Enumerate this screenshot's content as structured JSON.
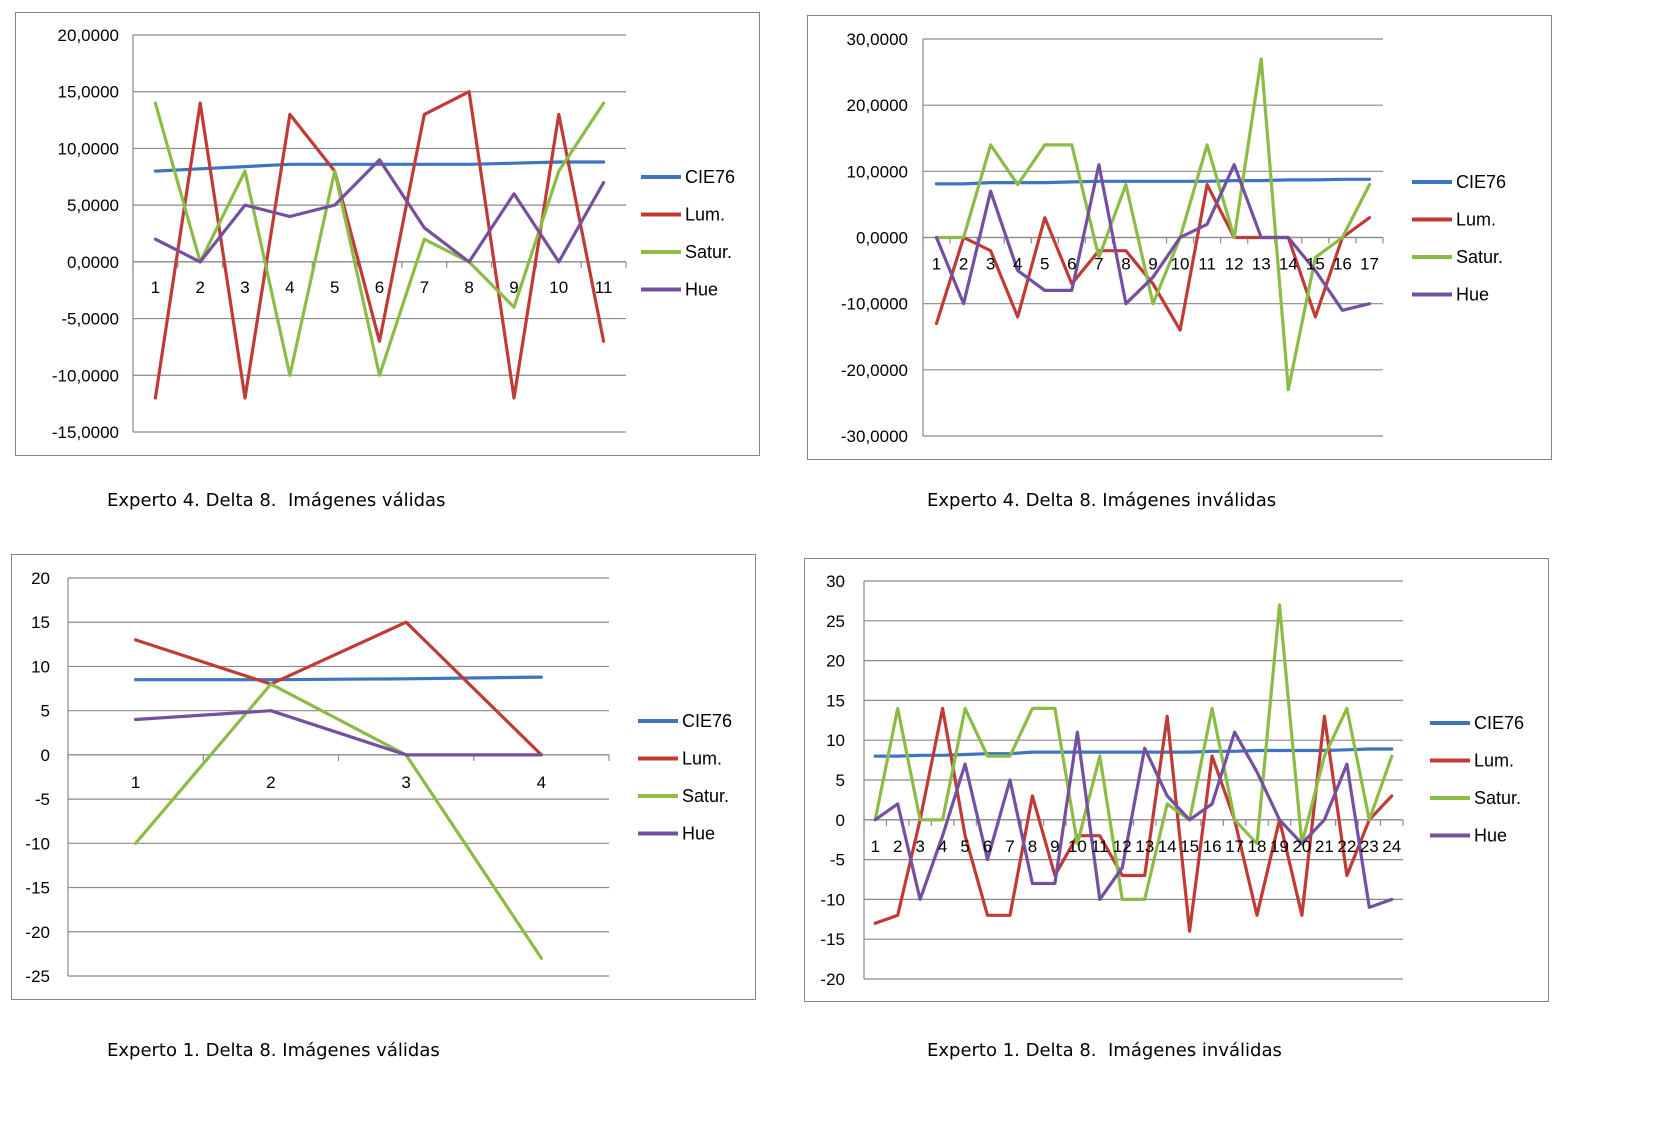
{
  "colors": {
    "CIE76": "#3e74c0",
    "Lum.": "#c03b36",
    "Satur.": "#8cbc45",
    "Hue": "#7350a0",
    "grid": "#8a8a8a"
  },
  "captions": [
    "Experto 4. Delta 8.  Imágenes válidas",
    "Experto 4. Delta 8. Imágenes inválidas",
    "Experto 1. Delta 8. Imágenes válidas",
    "Experto 1. Delta 8.  Imágenes inválidas"
  ],
  "chart_data": [
    {
      "type": "line",
      "x": [
        1,
        2,
        3,
        4,
        5,
        6,
        7,
        8,
        9,
        10,
        11
      ],
      "ylim": [
        -15,
        20
      ],
      "yticks": [
        "20,0000",
        "15,0000",
        "10,0000",
        "5,0000",
        "0,0000",
        "-5,0000",
        "-10,0000",
        "-15,0000"
      ],
      "legend": "right",
      "grid": true,
      "series": [
        {
          "name": "CIE76",
          "values": [
            8.0,
            8.2,
            8.4,
            8.6,
            8.6,
            8.6,
            8.6,
            8.6,
            8.7,
            8.8,
            8.8
          ]
        },
        {
          "name": "Lum.",
          "values": [
            -12,
            14,
            -12,
            13,
            8,
            -7,
            13,
            15,
            -12,
            13,
            -7
          ]
        },
        {
          "name": "Satur.",
          "values": [
            14,
            0,
            8,
            -10,
            8,
            -10,
            2,
            0,
            -4,
            8,
            14
          ]
        },
        {
          "name": "Hue",
          "values": [
            2,
            0,
            5,
            4,
            5,
            9,
            3,
            0,
            6,
            0,
            7
          ]
        }
      ]
    },
    {
      "type": "line",
      "x": [
        1,
        2,
        3,
        4,
        5,
        6,
        7,
        8,
        9,
        10,
        11,
        12,
        13,
        14,
        15,
        16,
        17
      ],
      "ylim": [
        -30,
        30
      ],
      "yticks": [
        "30,0000",
        "20,0000",
        "10,0000",
        "0,0000",
        "-10,0000",
        "-20,0000",
        "-30,0000"
      ],
      "legend": "right",
      "grid": true,
      "series": [
        {
          "name": "CIE76",
          "values": [
            8.1,
            8.1,
            8.3,
            8.3,
            8.3,
            8.4,
            8.5,
            8.5,
            8.5,
            8.5,
            8.5,
            8.6,
            8.6,
            8.7,
            8.7,
            8.8,
            8.8
          ]
        },
        {
          "name": "Lum.",
          "values": [
            -13,
            0,
            -2,
            -12,
            3,
            -7,
            -2,
            -2,
            -7,
            -14,
            8,
            0,
            0,
            0,
            -12,
            0,
            3
          ]
        },
        {
          "name": "Satur.",
          "values": [
            0,
            0,
            14,
            8,
            14,
            14,
            -3,
            8,
            -10,
            0,
            14,
            0,
            27,
            -23,
            -3,
            0,
            8
          ]
        },
        {
          "name": "Hue",
          "values": [
            0,
            -10,
            7,
            -5,
            -8,
            -8,
            11,
            -10,
            -6,
            0,
            2,
            11,
            0,
            0,
            -5,
            -11,
            -10
          ]
        }
      ]
    },
    {
      "type": "line",
      "x": [
        1,
        2,
        3,
        4
      ],
      "ylim": [
        -25,
        20
      ],
      "yticks": [
        "20",
        "15",
        "10",
        "5",
        "0",
        "-5",
        "-10",
        "-15",
        "-20",
        "-25"
      ],
      "legend": "right",
      "grid": true,
      "series": [
        {
          "name": "CIE76",
          "values": [
            8.5,
            8.5,
            8.6,
            8.8
          ]
        },
        {
          "name": "Lum.",
          "values": [
            13,
            8,
            15,
            0
          ]
        },
        {
          "name": "Satur.",
          "values": [
            -10,
            8,
            0,
            -23
          ]
        },
        {
          "name": "Hue",
          "values": [
            4,
            5,
            0,
            0
          ]
        }
      ]
    },
    {
      "type": "line",
      "x": [
        1,
        2,
        3,
        4,
        5,
        6,
        7,
        8,
        9,
        10,
        11,
        12,
        13,
        14,
        15,
        16,
        17,
        18,
        19,
        20,
        21,
        22,
        23,
        24
      ],
      "ylim": [
        -20,
        30
      ],
      "yticks": [
        "30",
        "25",
        "20",
        "15",
        "10",
        "5",
        "0",
        "-5",
        "-10",
        "-15",
        "-20"
      ],
      "legend": "right",
      "grid": true,
      "series": [
        {
          "name": "CIE76",
          "values": [
            8.0,
            8.0,
            8.1,
            8.1,
            8.2,
            8.3,
            8.3,
            8.5,
            8.5,
            8.5,
            8.5,
            8.5,
            8.5,
            8.5,
            8.5,
            8.6,
            8.6,
            8.7,
            8.7,
            8.7,
            8.7,
            8.8,
            8.9,
            8.9
          ]
        },
        {
          "name": "Lum.",
          "values": [
            -13,
            -12,
            0,
            14,
            -2,
            -12,
            -12,
            3,
            -7,
            -2,
            -2,
            -7,
            -7,
            13,
            -14,
            8,
            0,
            -12,
            0,
            -12,
            13,
            -7,
            0,
            3
          ]
        },
        {
          "name": "Satur.",
          "values": [
            0,
            14,
            0,
            0,
            14,
            8,
            8,
            14,
            14,
            -3,
            8,
            -10,
            -10,
            2,
            0,
            14,
            0,
            -3,
            27,
            -3,
            8,
            14,
            0,
            8
          ]
        },
        {
          "name": "Hue",
          "values": [
            0,
            2,
            -10,
            -2,
            7,
            -5,
            5,
            -8,
            -8,
            11,
            -10,
            -6,
            9,
            3,
            0,
            2,
            11,
            6,
            0,
            -3,
            0,
            7,
            -11,
            -10
          ]
        }
      ]
    }
  ]
}
